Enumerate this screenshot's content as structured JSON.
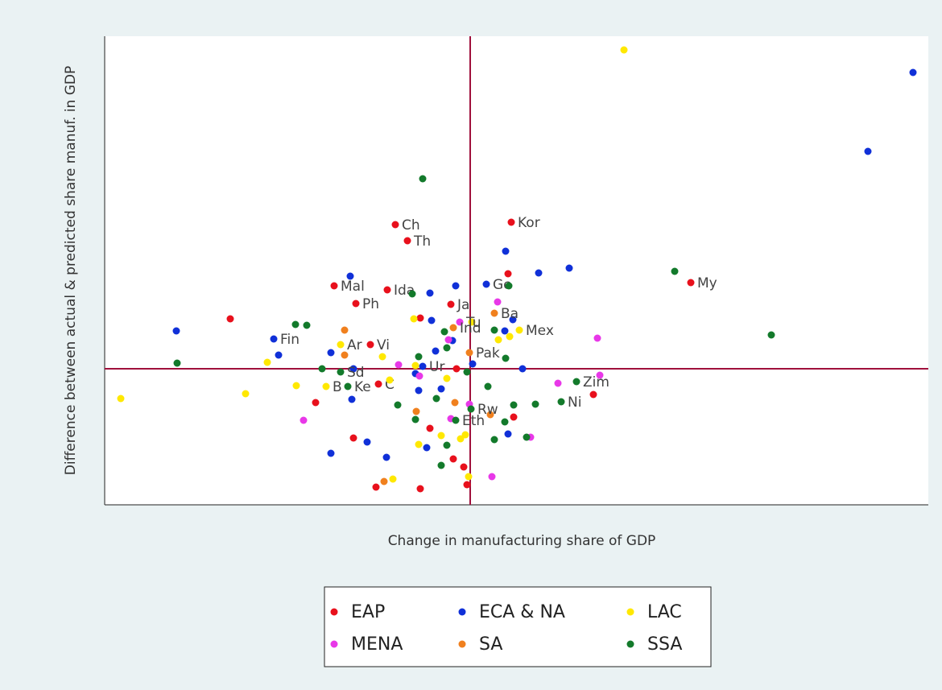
{
  "chart_data": {
    "type": "scatter",
    "xlabel": "Change in manufacturing share of GDP",
    "ylabel": "Difference between actual & predicted share manuf. in GDP",
    "xlim": [
      -45.4,
      56.9
    ],
    "ylim": [
      -16.9,
      41.3
    ],
    "reference_lines": {
      "x": 0,
      "y": 0,
      "color": "#a0103c"
    },
    "legend": "bottom",
    "series": [
      {
        "name": "EAP",
        "color": "#e8101c",
        "x": [
          -9.3,
          -7.8,
          5.1,
          27.4,
          -16.9,
          -10.3,
          -14.2,
          -2.4,
          -12.4,
          -29.8,
          4.7,
          -6.2,
          -11.4,
          -19.2,
          -14.5,
          -11.7,
          -6.2,
          -0.4,
          -0.8,
          -2.1,
          5.4,
          15.3,
          -1.7,
          -5.0
        ],
        "values": [
          17.9,
          15.9,
          18.2,
          10.7,
          10.3,
          9.8,
          8.1,
          8.0,
          3.0,
          6.2,
          11.8,
          6.3,
          -1.9,
          -4.2,
          -8.6,
          -14.7,
          -14.9,
          -14.4,
          -12.2,
          -11.2,
          -6.0,
          -3.2,
          0,
          -7.4
        ],
        "labels": [
          "Ch",
          "Th",
          "Kor",
          "My",
          "Mal",
          "Ida",
          "Ph",
          "Ja",
          "Vi",
          null,
          null,
          null,
          "C",
          null,
          null,
          null,
          null,
          null,
          null,
          null,
          null,
          null,
          null,
          null
        ]
      },
      {
        "name": "ECA & NA",
        "color": "#1030d8",
        "x": [
          55.0,
          49.4,
          4.4,
          12.3,
          8.5,
          -14.9,
          2.0,
          -1.8,
          -5.0,
          -36.5,
          -24.4,
          -23.8,
          -17.3,
          -4.8,
          5.3,
          4.3,
          6.5,
          -4.3,
          -2.2,
          -6.8,
          -5.9,
          -14.7,
          -12.8,
          -10.4,
          -17.3,
          -5.4,
          4.7,
          -6.4,
          0.3,
          -3.6,
          -14.5
        ],
        "values": [
          36.8,
          27.0,
          14.6,
          12.5,
          11.9,
          11.5,
          10.5,
          10.3,
          9.4,
          4.7,
          3.7,
          1.7,
          2.0,
          6.0,
          6.1,
          4.7,
          0,
          2.2,
          3.5,
          -0.6,
          0.3,
          -3.8,
          -9.1,
          -11.0,
          -10.5,
          -9.8,
          -8.1,
          -2.7,
          0.6,
          -2.5,
          0
        ],
        "labels": [
          null,
          null,
          null,
          null,
          null,
          null,
          "Ge",
          null,
          null,
          null,
          "Fin",
          null,
          null,
          null,
          null,
          null,
          null,
          null,
          null,
          null,
          "Ur",
          null,
          null,
          null,
          null,
          null,
          null,
          null,
          null,
          null,
          null
        ]
      },
      {
        "name": "LAC",
        "color": "#ffe800",
        "x": [
          19.1,
          -43.4,
          -27.9,
          -25.2,
          -21.6,
          -16.1,
          -17.9,
          -10.9,
          -7.0,
          6.1,
          4.9,
          3.5,
          0.2,
          -9.6,
          -3.6,
          -6.4,
          -0.6,
          -0.2,
          -10.0,
          -6.8,
          -2.9,
          -1.2
        ],
        "values": [
          39.6,
          -3.7,
          -3.1,
          0.8,
          -2.1,
          3.0,
          -2.2,
          1.5,
          6.2,
          4.8,
          4.0,
          3.6,
          5.8,
          -13.7,
          -8.3,
          -9.4,
          -8.2,
          -13.4,
          -1.4,
          0.4,
          -1.2,
          -8.7
        ],
        "labels": [
          null,
          null,
          null,
          null,
          null,
          "Ar",
          "B",
          null,
          null,
          "Mex",
          null,
          null,
          null,
          null,
          null,
          null,
          null,
          null,
          null,
          null,
          null,
          null
        ]
      },
      {
        "name": "MENA",
        "color": "#e838e8",
        "x": [
          3.4,
          15.8,
          16.1,
          10.9,
          -20.7,
          7.5,
          2.7,
          -8.9,
          -6.3,
          -2.7,
          -1.3,
          -2.4,
          -0.1
        ],
        "values": [
          8.3,
          3.8,
          -0.8,
          -1.8,
          -6.4,
          -8.5,
          -13.4,
          0.5,
          -0.9,
          3.6,
          5.8,
          -6.2,
          -4.4
        ],
        "labels": [
          null,
          null,
          null,
          null,
          null,
          null,
          null,
          null,
          null,
          null,
          "Tu",
          null,
          null
        ]
      },
      {
        "name": "SA",
        "color": "#f0801e",
        "x": [
          3.0,
          -0.1,
          -15.6,
          -15.6,
          -10.7,
          -6.7,
          -1.9,
          2.5,
          -2.1
        ],
        "values": [
          6.9,
          2.0,
          4.8,
          1.7,
          -14.0,
          -5.3,
          -4.2,
          -5.7,
          5.1
        ],
        "labels": [
          "Ba",
          "Pak",
          null,
          null,
          null,
          null,
          null,
          null,
          "Ind"
        ]
      },
      {
        "name": "SSA",
        "color": "#137a2b",
        "x": [
          -5.9,
          25.4,
          37.4,
          -36.4,
          -21.7,
          -20.3,
          -7.2,
          4.8,
          -18.4,
          -16.1,
          -15.2,
          -3.2,
          -2.9,
          -6.4,
          3.0,
          4.4,
          13.2,
          11.3,
          8.1,
          5.4,
          -9.0,
          -6.8,
          -3.6,
          -2.9,
          3.0,
          7.0,
          4.3,
          0.1,
          -1.8,
          -4.2,
          2.2,
          -0.4
        ],
        "values": [
          23.6,
          12.1,
          4.2,
          0.7,
          5.5,
          5.4,
          9.3,
          10.3,
          0,
          -0.4,
          -2.2,
          4.6,
          2.6,
          1.5,
          4.8,
          1.3,
          -1.6,
          -4.1,
          -4.4,
          -4.5,
          -4.5,
          -6.3,
          -12.0,
          -9.5,
          -8.8,
          -8.5,
          -6.6,
          -5.0,
          -6.4,
          -3.7,
          -2.2,
          -0.4
        ],
        "labels": [
          null,
          null,
          null,
          null,
          null,
          null,
          null,
          null,
          null,
          "Sd",
          "Ke",
          null,
          null,
          null,
          null,
          null,
          "Zim",
          "Ni",
          null,
          null,
          null,
          null,
          null,
          null,
          null,
          null,
          null,
          "Rw",
          "Eth",
          null,
          null,
          null
        ]
      }
    ]
  }
}
